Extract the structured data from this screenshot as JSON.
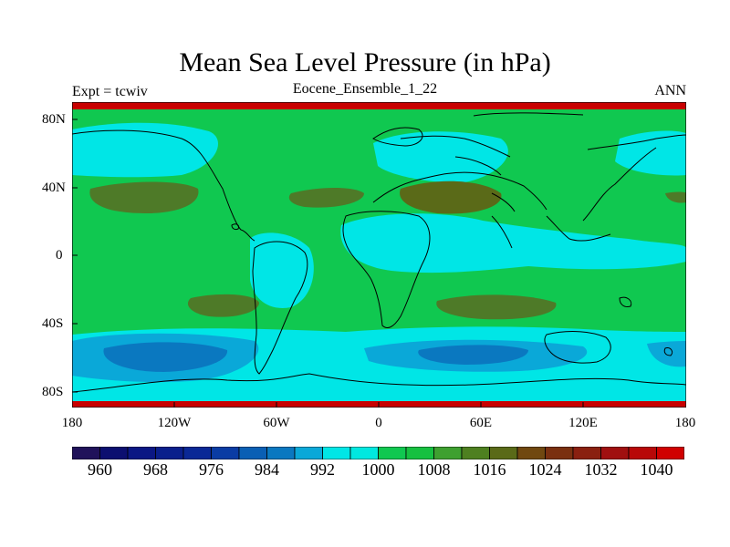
{
  "title": "Mean Sea Level Pressure (in hPa)",
  "left_string": "Expt = tcwiv",
  "center_string": "Eocene_Ensemble_1_22",
  "right_string": "ANN",
  "lat_labels": [
    "80N",
    "40N",
    "0",
    "40S",
    "80S"
  ],
  "lon_labels": [
    "180",
    "120W",
    "60W",
    "0",
    "60E",
    "120E",
    "180"
  ],
  "colorbar": {
    "colors": [
      "#20125a",
      "#0c0f70",
      "#0b1784",
      "#0a1f8c",
      "#0a2896",
      "#0a3ca4",
      "#0a5fb4",
      "#0a78c0",
      "#0aa8d8",
      "#00e6e6",
      "#00e8e0",
      "#10c850",
      "#16c040",
      "#3ea030",
      "#4e8020",
      "#5a6a18",
      "#704810",
      "#7a3010",
      "#8a2010",
      "#a01010",
      "#b80808",
      "#d00000"
    ],
    "labels": [
      "960",
      "968",
      "976",
      "984",
      "992",
      "1000",
      "1008",
      "1016",
      "1024",
      "1032",
      "1040"
    ],
    "label_after_box": [
      1,
      3,
      5,
      7,
      9,
      11,
      13,
      15,
      17,
      19,
      21
    ]
  },
  "map_colors": {
    "background": "#10c850",
    "low_cyan": "#00e6e6",
    "mid_blue": "#0aa8d8",
    "deep_blue": "#0a78c0",
    "high_olive": "#4e7a28",
    "high_dark": "#5a6a18",
    "pole_red": "#c80000"
  },
  "map_legend_note": "",
  "colorbar_bins": 22
}
